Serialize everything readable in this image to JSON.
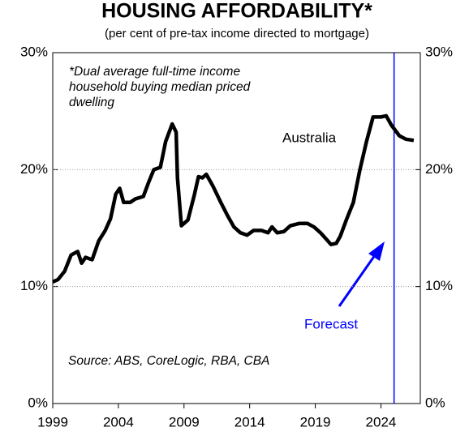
{
  "chart_data": {
    "type": "line",
    "title": "HOUSING AFFORDABILITY*",
    "subtitle": "(per cent of pre-tax income directed to mortgage)",
    "note": [
      "*Dual average full-time income",
      "household buying median priced",
      "dwelling"
    ],
    "source": "Source: ABS, CoreLogic, RBA, CBA",
    "forecast_label": "Forecast",
    "forecast_x": 2025,
    "forecast_color": "#0000ff",
    "series": [
      {
        "name": "Australia",
        "color": "#000000",
        "x": [
          1999,
          1999.4,
          1999.9,
          2000.4,
          2000.9,
          2001.2,
          2001.5,
          2002,
          2002.5,
          2003,
          2003.4,
          2003.8,
          2004.1,
          2004.4,
          2004.9,
          2005.3,
          2005.9,
          2006.3,
          2006.7,
          2007.2,
          2007.6,
          2008.1,
          2008.4,
          2008.5,
          2008.8,
          2009.3,
          2009.8,
          2010.1,
          2010.4,
          2010.7,
          2011.2,
          2011.8,
          2012.3,
          2012.8,
          2013.3,
          2013.8,
          2014.3,
          2014.9,
          2015.4,
          2015.7,
          2016.1,
          2016.6,
          2017.1,
          2017.8,
          2018.4,
          2018.9,
          2019.4,
          2019.8,
          2020.2,
          2020.6,
          2020.9,
          2021.4,
          2021.9,
          2022.4,
          2022.9,
          2023.4,
          2024.0,
          2024.4,
          2024.8,
          2025.4,
          2025.9,
          2026.5
        ],
        "values": [
          10.4,
          10.6,
          11.3,
          12.7,
          13.0,
          12.0,
          12.5,
          12.3,
          13.9,
          14.8,
          15.8,
          17.9,
          18.4,
          17.2,
          17.2,
          17.5,
          17.7,
          18.9,
          20.0,
          20.2,
          22.4,
          23.9,
          23.2,
          19.3,
          15.2,
          15.7,
          17.9,
          19.4,
          19.3,
          19.6,
          18.6,
          17.2,
          16.1,
          15.1,
          14.6,
          14.4,
          14.8,
          14.8,
          14.6,
          15.1,
          14.6,
          14.7,
          15.2,
          15.4,
          15.4,
          15.1,
          14.6,
          14.1,
          13.6,
          13.7,
          14.3,
          15.8,
          17.2,
          20.0,
          22.4,
          24.5,
          24.5,
          24.6,
          23.8,
          22.9,
          22.6,
          22.5
        ]
      }
    ],
    "xlim": [
      1999,
      2027
    ],
    "xticks": [
      1999,
      2004,
      2009,
      2014,
      2019,
      2024
    ],
    "ylim": [
      0,
      30
    ],
    "yticks": [
      {
        "value": 0,
        "label": "0%"
      },
      {
        "value": 10,
        "label": "10%"
      },
      {
        "value": 20,
        "label": "20%"
      },
      {
        "value": 30,
        "label": "30%"
      }
    ],
    "y2lim": [
      0,
      30
    ],
    "y2ticks": [
      {
        "value": 0,
        "label": "0%"
      },
      {
        "value": 10,
        "label": "10%"
      },
      {
        "value": 20,
        "label": "20%"
      },
      {
        "value": 30,
        "label": "30%"
      }
    ],
    "grid": true
  }
}
